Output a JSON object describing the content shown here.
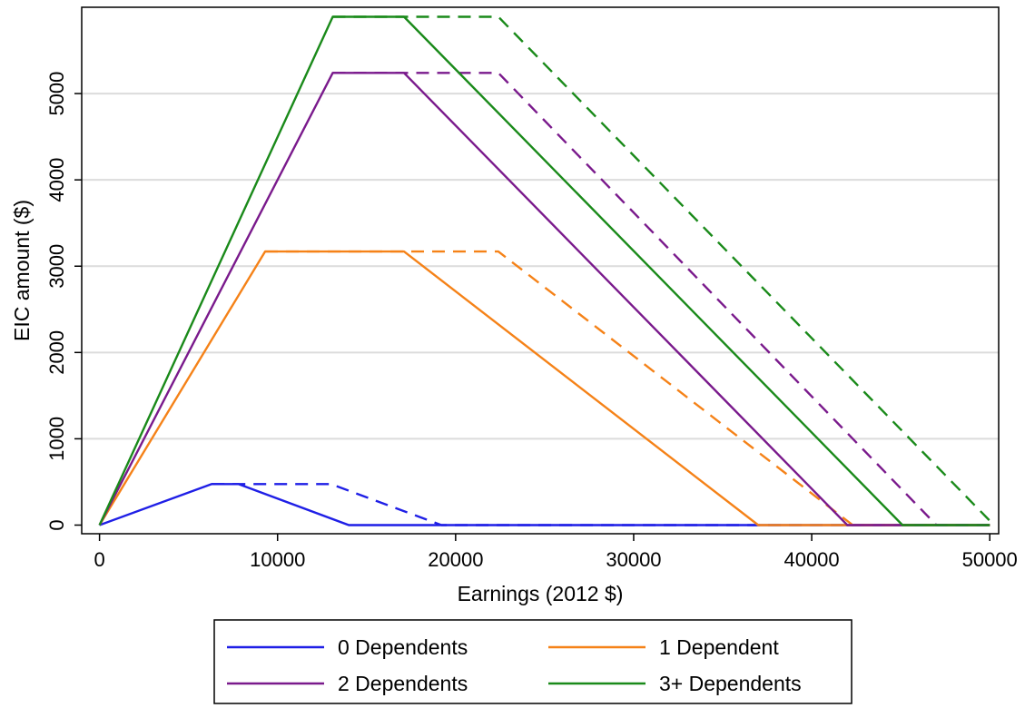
{
  "chart_data": {
    "type": "line",
    "title": "",
    "xlabel": "Earnings (2012 $)",
    "ylabel": "EIC amount ($)",
    "xlim": [
      -1000,
      50500
    ],
    "ylim": [
      -100,
      6000
    ],
    "xticks": [
      0,
      10000,
      20000,
      30000,
      40000,
      50000
    ],
    "yticks": [
      0,
      1000,
      2000,
      3000,
      4000,
      5000
    ],
    "grid": "horizontal",
    "legend_position": "bottom",
    "series": [
      {
        "name": "0 Dependents",
        "color": "#1f1fe6",
        "style": "solid",
        "x": [
          0,
          6300,
          7800,
          14000,
          50000
        ],
        "y": [
          0,
          475,
          475,
          0,
          0
        ]
      },
      {
        "name": "",
        "color": "#1f1fe6",
        "style": "dashed",
        "x": [
          6300,
          13000,
          19200,
          50000
        ],
        "y": [
          475,
          475,
          0,
          0
        ]
      },
      {
        "name": "1 Dependent",
        "color": "#f58218",
        "style": "solid",
        "x": [
          0,
          9300,
          17100,
          37000,
          50000
        ],
        "y": [
          0,
          3170,
          3170,
          0,
          0
        ]
      },
      {
        "name": "",
        "color": "#f58218",
        "style": "dashed",
        "x": [
          9300,
          22400,
          42300,
          50000
        ],
        "y": [
          3170,
          3170,
          0,
          0
        ]
      },
      {
        "name": "2 Dependents",
        "color": "#7a1a8c",
        "style": "solid",
        "x": [
          0,
          13100,
          17100,
          42000,
          50000
        ],
        "y": [
          0,
          5240,
          5240,
          0,
          0
        ]
      },
      {
        "name": "",
        "color": "#7a1a8c",
        "style": "dashed",
        "x": [
          13100,
          22400,
          47000,
          50000
        ],
        "y": [
          5240,
          5240,
          0,
          0
        ]
      },
      {
        "name": "3+ Dependents",
        "color": "#1a8a1a",
        "style": "solid",
        "x": [
          0,
          13100,
          17100,
          45100,
          50000
        ],
        "y": [
          0,
          5890,
          5890,
          0,
          0
        ]
      },
      {
        "name": "",
        "color": "#1a8a1a",
        "style": "dashed",
        "x": [
          13100,
          22400,
          50000
        ],
        "y": [
          5890,
          5890,
          50
        ]
      }
    ],
    "legend": [
      {
        "label": "0 Dependents",
        "color": "#1f1fe6"
      },
      {
        "label": "1 Dependent",
        "color": "#f58218"
      },
      {
        "label": "2 Dependents",
        "color": "#7a1a8c"
      },
      {
        "label": "3+ Dependents",
        "color": "#1a8a1a"
      }
    ]
  }
}
